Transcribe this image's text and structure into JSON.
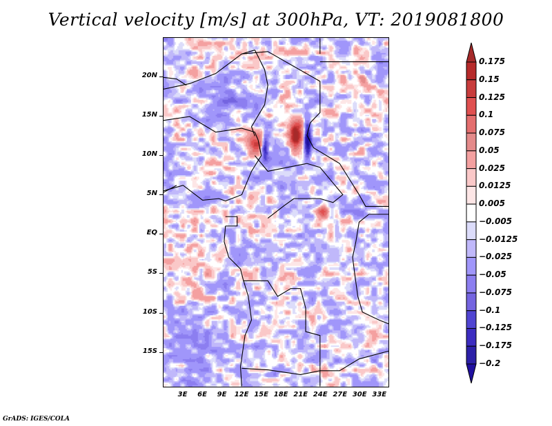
{
  "chart_data": {
    "type": "heatmap",
    "title": "Vertical velocity [m/s] at 300hPa, VT: 2019081800",
    "variable": "Vertical velocity",
    "units": "m/s",
    "level": "300hPa",
    "valid_time": "2019081800",
    "xlabel": "",
    "ylabel": "",
    "x_ticks": [
      "3E",
      "6E",
      "9E",
      "12E",
      "15E",
      "18E",
      "21E",
      "24E",
      "27E",
      "30E",
      "33E"
    ],
    "x_tick_values": [
      3,
      6,
      9,
      12,
      15,
      18,
      21,
      24,
      27,
      30,
      33
    ],
    "y_ticks": [
      "20N",
      "15N",
      "10N",
      "5N",
      "EQ",
      "5S",
      "10S",
      "15S"
    ],
    "y_tick_values": [
      20,
      15,
      10,
      5,
      0,
      -5,
      -10,
      -15
    ],
    "xlim": [
      0,
      34.5
    ],
    "ylim": [
      -19.5,
      25
    ],
    "colorbar": {
      "labels": [
        "0.175",
        "0.15",
        "0.125",
        "0.1",
        "0.075",
        "0.05",
        "0.025",
        "0.0125",
        "0.005",
        "-0.005",
        "-0.0125",
        "-0.025",
        "-0.05",
        "-0.075",
        "-0.1",
        "-0.125",
        "-0.175",
        "-0.2"
      ],
      "levels": [
        0.175,
        0.15,
        0.125,
        0.1,
        0.075,
        0.05,
        0.025,
        0.0125,
        0.005,
        -0.005,
        -0.0125,
        -0.025,
        -0.05,
        -0.075,
        -0.1,
        -0.125,
        -0.175,
        -0.2
      ],
      "colors": [
        "#a52a2a",
        "#b62a2a",
        "#c83c3c",
        "#e05050",
        "#e46e6e",
        "#e48a8a",
        "#f4a0a0",
        "#fac8c8",
        "#fde6e6",
        "#ffffff",
        "#dcdcfa",
        "#c0b8fa",
        "#a096fa",
        "#8c7ef0",
        "#7464e0",
        "#5044d2",
        "#3c2cc0",
        "#2c20a8",
        "#2010a0"
      ],
      "extend": "both",
      "placement": "right"
    },
    "notable_features": [
      {
        "description": "strong ascent (red) maximum",
        "lon": 20.5,
        "lat": 12.5,
        "value_range": ">0.175"
      },
      {
        "description": "strong descent (blue) adjacent band",
        "lon": 22,
        "lat": 12,
        "value_range": "<-0.2"
      },
      {
        "description": "ascent maximum",
        "lon": 14,
        "lat": 11,
        "value_range": ">0.15"
      },
      {
        "description": "ascent cluster",
        "lon": 24,
        "lat": 3,
        "value_range": ">0.1"
      }
    ],
    "grid": false
  },
  "footer": {
    "credit": "GrADS: IGES/COLA"
  }
}
